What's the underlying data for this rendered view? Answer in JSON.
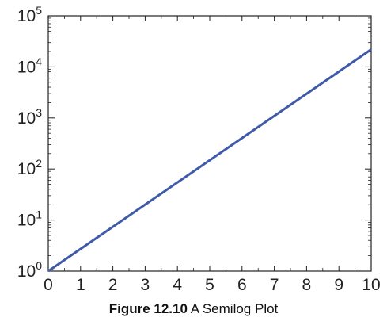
{
  "chart_data": {
    "type": "line",
    "xlim": [
      0,
      10
    ],
    "ylim": [
      1,
      100000
    ],
    "yscale": "log",
    "grid": false,
    "legend": "none",
    "x_tick_labels": [
      "0",
      "1",
      "2",
      "3",
      "4",
      "5",
      "6",
      "7",
      "8",
      "9",
      "10"
    ],
    "y_tick_labels": [
      {
        "value": 1,
        "base": "10",
        "exp": "0"
      },
      {
        "value": 10,
        "base": "10",
        "exp": "1"
      },
      {
        "value": 100,
        "base": "10",
        "exp": "2"
      },
      {
        "value": 1000,
        "base": "10",
        "exp": "3"
      },
      {
        "value": 10000,
        "base": "10",
        "exp": "4"
      },
      {
        "value": 100000,
        "base": "10",
        "exp": "5"
      }
    ],
    "series": [
      {
        "color": "#3f5aa8",
        "x": [
          0,
          10
        ],
        "y": [
          1,
          22000
        ]
      }
    ]
  },
  "caption": {
    "label": "Figure 12.10",
    "text": " A Semilog Plot"
  }
}
